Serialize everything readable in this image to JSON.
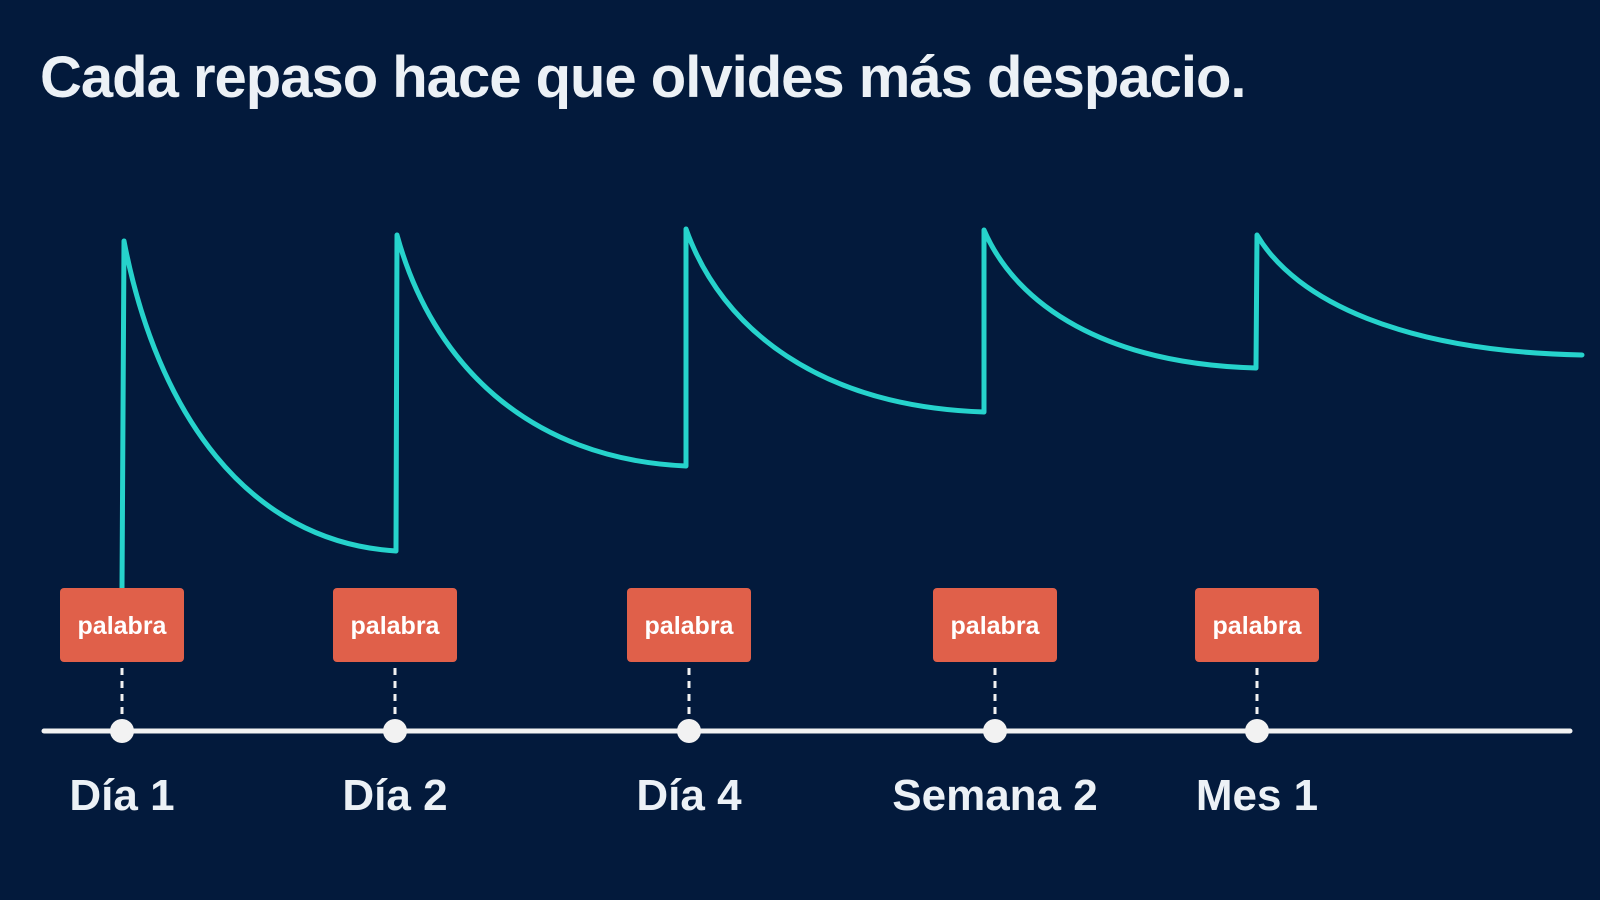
{
  "title": "Cada repaso hace que olvides más despacio.",
  "review_tag_text": "palabra",
  "reviews": [
    {
      "label": "Día 1"
    },
    {
      "label": "Día 2"
    },
    {
      "label": "Día 4"
    },
    {
      "label": "Semana 2"
    },
    {
      "label": "Mes 1"
    }
  ],
  "colors": {
    "background": "#031a3c",
    "curve": "#26d3cc",
    "tag": "#e0604a",
    "timeline": "#f2f2f2",
    "text": "#ecf1f6"
  }
}
